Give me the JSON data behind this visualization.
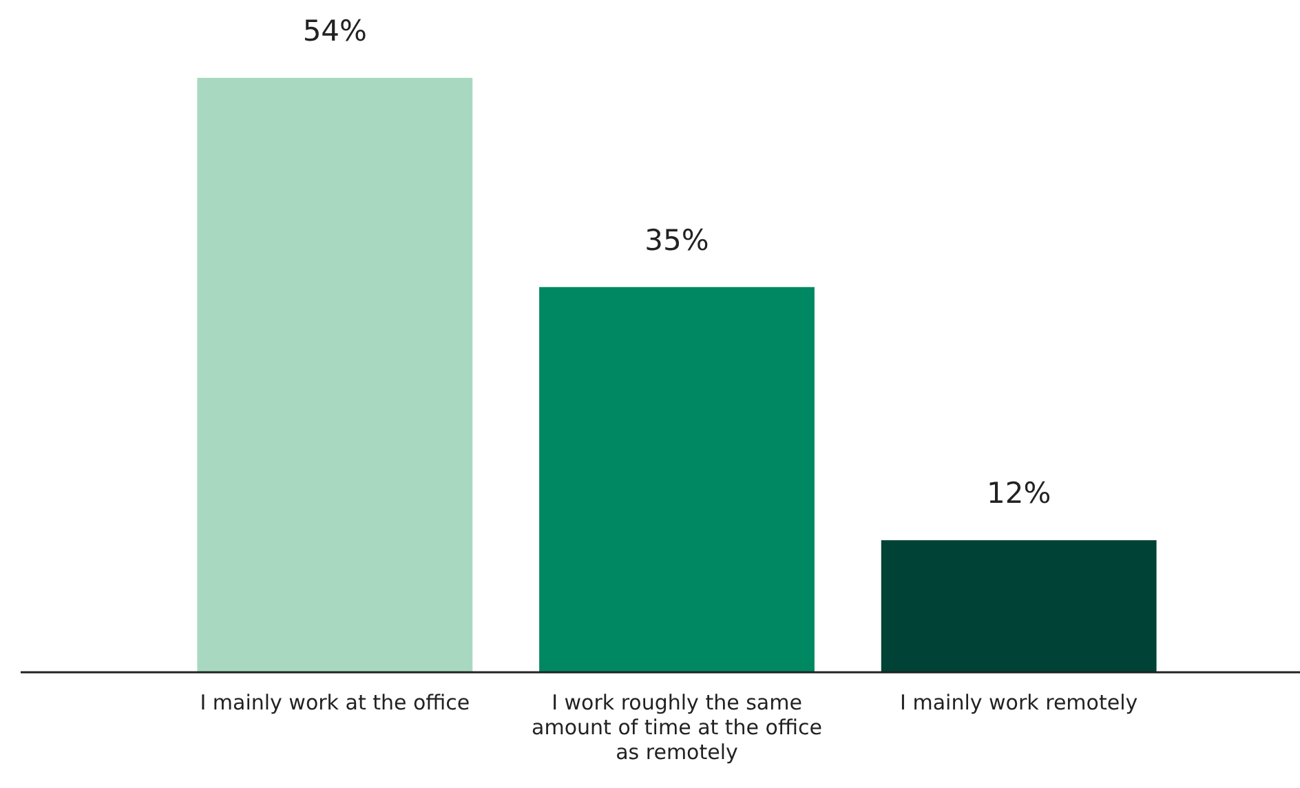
{
  "chart_data": {
    "type": "bar",
    "categories": [
      "I mainly work at the office",
      "I work roughly the same amount of time at the office as remotely",
      "I mainly work remotely"
    ],
    "values": [
      54,
      35,
      12
    ],
    "colors": [
      "#a8d9c0",
      "#008862",
      "#004235"
    ],
    "value_labels": [
      "54%",
      "35%",
      "12%"
    ],
    "relative": false
  }
}
